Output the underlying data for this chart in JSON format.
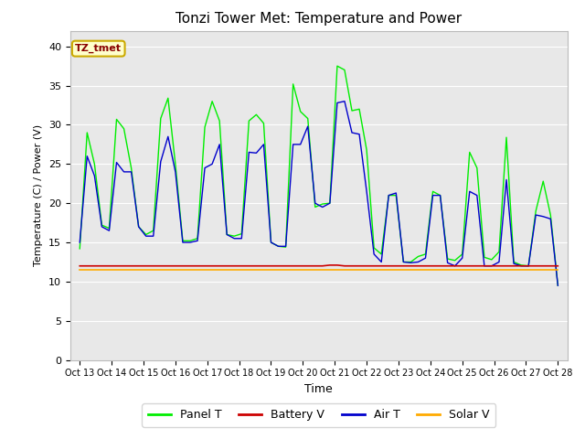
{
  "title": "Tonzi Tower Met: Temperature and Power",
  "xlabel": "Time",
  "ylabel": "Temperature (C) / Power (V)",
  "ylim": [
    0,
    42
  ],
  "yticks": [
    0,
    5,
    10,
    15,
    20,
    25,
    30,
    35,
    40
  ],
  "xtick_labels": [
    "Oct 13",
    "Oct 14",
    "Oct 15",
    "Oct 16",
    "Oct 17",
    "Oct 18",
    "Oct 19",
    "Oct 20",
    "Oct 21",
    "Oct 22",
    "Oct 23",
    "Oct 24",
    "Oct 25",
    "Oct 26",
    "Oct 27",
    "Oct 28"
  ],
  "annotation_text": "TZ_tmet",
  "annotation_color": "#880000",
  "annotation_bg": "#ffffcc",
  "annotation_border": "#ccaa00",
  "plot_bg_color": "#e8e8e8",
  "fig_bg_color": "#ffffff",
  "panel_color": "#00ee00",
  "battery_color": "#cc0000",
  "air_color": "#0000cc",
  "solar_color": "#ffaa00",
  "legend_labels": [
    "Panel T",
    "Battery V",
    "Air T",
    "Solar V"
  ],
  "grid_color": "#ffffff",
  "panel_t": [
    14.2,
    29.0,
    25.0,
    17.2,
    16.8,
    30.7,
    29.5,
    24.5,
    17.0,
    16.0,
    16.5,
    30.8,
    33.4,
    25.0,
    15.2,
    15.2,
    15.5,
    29.7,
    33.0,
    30.5,
    16.0,
    15.8,
    16.1,
    30.5,
    31.3,
    30.2,
    15.0,
    14.5,
    14.4,
    35.2,
    31.7,
    30.8,
    19.5,
    19.9,
    20.0,
    37.5,
    37.0,
    31.8,
    32.0,
    26.8,
    14.3,
    13.5,
    21.0,
    21.0,
    12.5,
    12.5,
    13.2,
    13.5,
    21.5,
    21.0,
    12.9,
    12.7,
    13.5,
    26.5,
    24.5,
    13.1,
    12.8,
    13.8,
    28.4,
    12.5,
    12.1,
    12.0,
    19.0,
    22.8,
    18.5,
    9.5
  ],
  "air_t": [
    15.0,
    26.0,
    23.5,
    17.0,
    16.5,
    25.2,
    24.0,
    24.0,
    17.0,
    15.8,
    15.8,
    25.3,
    28.5,
    24.0,
    15.0,
    15.0,
    15.2,
    24.5,
    25.0,
    27.5,
    16.0,
    15.5,
    15.5,
    26.5,
    26.4,
    27.5,
    15.0,
    14.5,
    14.5,
    27.5,
    27.5,
    29.8,
    20.0,
    19.5,
    20.0,
    32.8,
    33.0,
    29.0,
    28.8,
    21.5,
    13.5,
    12.5,
    21.0,
    21.3,
    12.5,
    12.4,
    12.5,
    13.0,
    21.0,
    21.0,
    12.4,
    12.0,
    13.0,
    21.5,
    21.0,
    12.0,
    12.0,
    12.5,
    23.0,
    12.3,
    12.0,
    12.0,
    18.5,
    18.3,
    18.0,
    9.5
  ],
  "battery_v": [
    12.0,
    12.0,
    12.0,
    12.0,
    12.0,
    12.0,
    12.0,
    12.0,
    12.0,
    12.0,
    12.0,
    12.0,
    12.0,
    12.0,
    12.0,
    12.0,
    12.0,
    12.0,
    12.0,
    12.0,
    12.0,
    12.0,
    12.0,
    12.0,
    12.0,
    12.0,
    12.0,
    12.0,
    12.0,
    12.0,
    12.0,
    12.0,
    12.0,
    12.0,
    12.1,
    12.1,
    12.0,
    12.0,
    12.0,
    12.0,
    12.0,
    12.0,
    12.0,
    12.0,
    12.0,
    12.0,
    12.0,
    12.0,
    12.0,
    12.0,
    12.0,
    12.0,
    12.0,
    12.0,
    12.0,
    12.0,
    12.0,
    12.0,
    12.0,
    12.0,
    12.0,
    12.0,
    12.0,
    12.0,
    12.0,
    12.0
  ],
  "solar_v": [
    11.5,
    11.5,
    11.5,
    11.5,
    11.5,
    11.5,
    11.5,
    11.5,
    11.5,
    11.5,
    11.5,
    11.5,
    11.5,
    11.5,
    11.5,
    11.5,
    11.5,
    11.5,
    11.5,
    11.5,
    11.5,
    11.5,
    11.5,
    11.5,
    11.5,
    11.5,
    11.5,
    11.5,
    11.5,
    11.5,
    11.5,
    11.5,
    11.5,
    11.5,
    11.5,
    11.5,
    11.5,
    11.5,
    11.5,
    11.5,
    11.5,
    11.5,
    11.5,
    11.5,
    11.5,
    11.5,
    11.5,
    11.5,
    11.5,
    11.5,
    11.5,
    11.5,
    11.5,
    11.5,
    11.5,
    11.5,
    11.5,
    11.5,
    11.5,
    11.5,
    11.5,
    11.5,
    11.5,
    11.5,
    11.5,
    11.5
  ]
}
